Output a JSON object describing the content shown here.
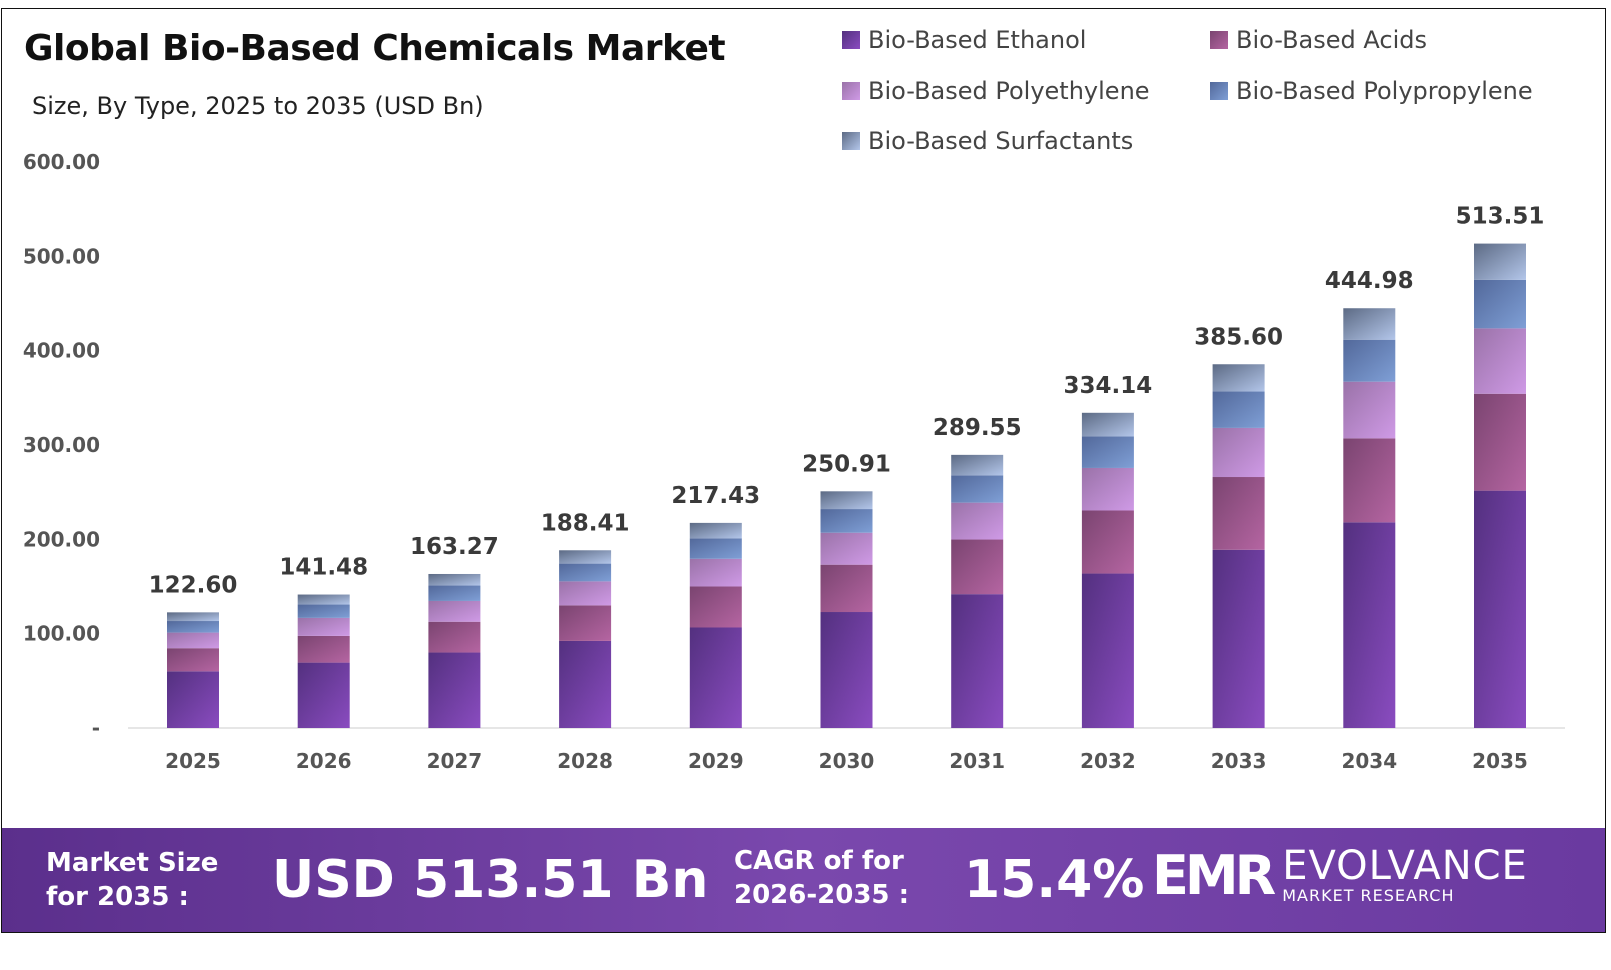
{
  "chart_data": {
    "type": "bar",
    "stacked": true,
    "title": "Global Bio-Based Chemicals Market",
    "subtitle": "Size, By Type, 2025 to 2035 (USD Bn)",
    "xlabel": "",
    "ylabel": "",
    "ylim": [
      0,
      600
    ],
    "yticks": [
      "-",
      "100.00",
      "200.00",
      "300.00",
      "400.00",
      "500.00",
      "600.00"
    ],
    "categories": [
      "2025",
      "2026",
      "2027",
      "2028",
      "2029",
      "2030",
      "2031",
      "2032",
      "2033",
      "2034",
      "2035"
    ],
    "totals": [
      "122.60",
      "141.48",
      "163.27",
      "188.41",
      "217.43",
      "250.91",
      "289.55",
      "334.14",
      "385.60",
      "444.98",
      "513.51"
    ],
    "legend_position": "top-right",
    "series": [
      {
        "name": "Bio-Based Ethanol",
        "colors": [
          "#53307f",
          "#8a4cc0"
        ],
        "values": [
          60.07,
          69.33,
          80.0,
          92.32,
          106.54,
          122.95,
          141.88,
          163.73,
          188.94,
          218.04,
          251.62
        ]
      },
      {
        "name": "Bio-Based Acids",
        "colors": [
          "#7a4470",
          "#b565a2"
        ],
        "values": [
          24.52,
          28.3,
          32.65,
          37.68,
          43.49,
          50.18,
          57.91,
          66.83,
          77.12,
          89.0,
          102.7
        ]
      },
      {
        "name": "Bio-Based Polyethylene",
        "colors": [
          "#9a72a8",
          "#cf9ae6"
        ],
        "values": [
          16.55,
          19.1,
          22.04,
          25.44,
          29.35,
          33.87,
          39.09,
          45.11,
          52.06,
          60.07,
          69.32
        ]
      },
      {
        "name": "Bio-Based Polypropylene",
        "colors": [
          "#52689a",
          "#7f9fd6"
        ],
        "values": [
          12.26,
          14.15,
          16.33,
          18.84,
          21.74,
          25.09,
          28.96,
          33.41,
          38.56,
          44.5,
          51.35
        ]
      },
      {
        "name": "Bio-Based Surfactants",
        "colors": [
          "#5c6a84",
          "#b3c6ea"
        ],
        "values": [
          9.2,
          10.6,
          12.25,
          14.13,
          16.31,
          18.82,
          21.71,
          25.06,
          28.92,
          33.37,
          38.52
        ]
      }
    ]
  },
  "footer": {
    "market_size_label_1": "Market Size",
    "market_size_label_2": "for 2035 :",
    "market_size_value": "USD 513.51 Bn",
    "cagr_label_1": "CAGR of for",
    "cagr_label_2": "2026-2035 :",
    "cagr_value": "15.4%",
    "logo_mark": "EMR",
    "logo_name": "EVOLVANCE",
    "logo_sub": "MARKET RESEARCH"
  }
}
